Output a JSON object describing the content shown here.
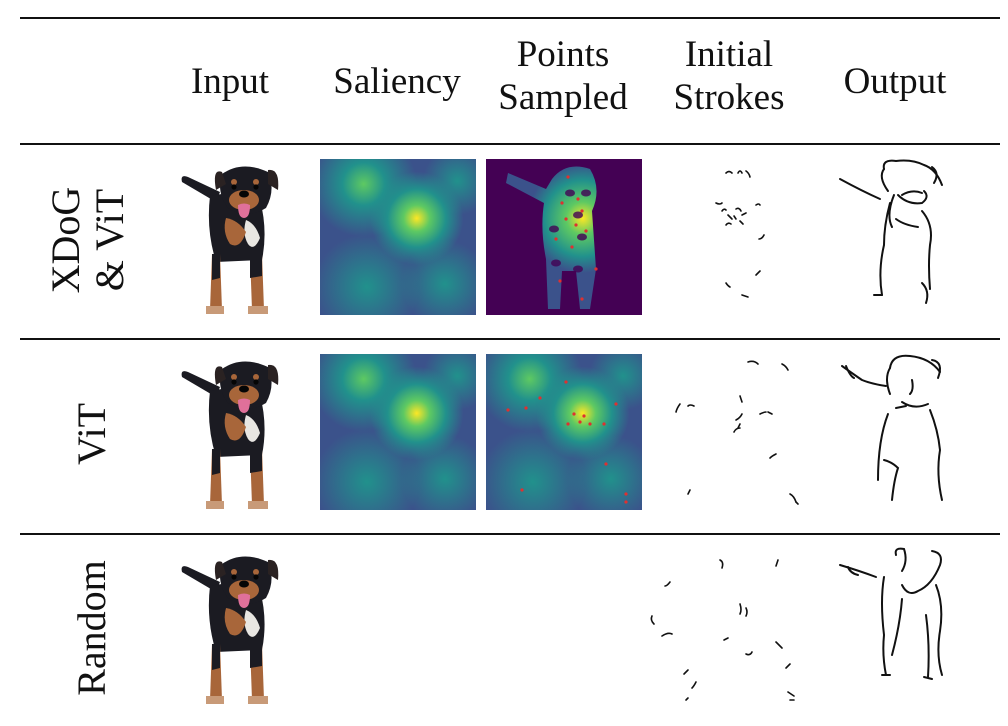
{
  "columns": [
    {
      "line1": "Input",
      "line2": ""
    },
    {
      "line1": "Saliency",
      "line2": ""
    },
    {
      "line1": "Points",
      "line2": "Sampled"
    },
    {
      "line1": "Initial",
      "line2": "Strokes"
    },
    {
      "line1": "Output",
      "line2": ""
    }
  ],
  "rows": [
    {
      "label_line1": "XDoG",
      "label_line2": "& ViT",
      "has_saliency": true
    },
    {
      "label_line1": "ViT",
      "label_line2": "",
      "has_saliency": true
    },
    {
      "label_line1": "Random",
      "label_line2": "",
      "has_saliency": false
    }
  ],
  "colors": {
    "viridis_dark": "#440154",
    "viridis_blue": "#3b528b",
    "viridis_teal": "#21918c",
    "viridis_green": "#5ec962",
    "viridis_yellow": "#fde725",
    "sample_point": "#e03030",
    "dog_fur": "#1b1b22",
    "dog_tan": "#a8663a"
  }
}
